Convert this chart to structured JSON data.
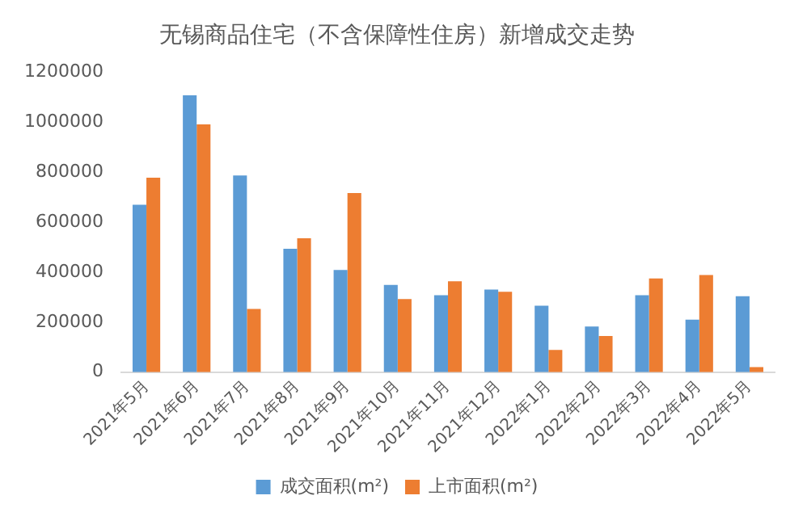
{
  "chart_data": {
    "type": "bar",
    "title": "无锡商品住宅（不含保障性住房）新增成交走势",
    "categories": [
      "2021年5月",
      "2021年6月",
      "2021年7月",
      "2021年8月",
      "2021年9月",
      "2021年10月",
      "2021年11月",
      "2021年12月",
      "2022年1月",
      "2022年2月",
      "2022年3月",
      "2022年4月",
      "2022年5月"
    ],
    "series": [
      {
        "name": "成交面积(m²)",
        "color": "#5b9bd5",
        "values": [
          670000,
          1108000,
          787000,
          494000,
          409000,
          349000,
          308000,
          331000,
          266000,
          183000,
          308000,
          210000,
          304000
        ]
      },
      {
        "name": "上市面积(m²)",
        "color": "#ed7d31",
        "values": [
          778000,
          992000,
          253000,
          536000,
          717000,
          293000,
          364000,
          322000,
          89000,
          145000,
          375000,
          389000,
          20000
        ]
      }
    ],
    "ylim": [
      0,
      1200000
    ],
    "yticks": [
      0,
      200000,
      400000,
      600000,
      800000,
      1000000,
      1200000
    ],
    "grid": false,
    "legend": "bottom"
  }
}
